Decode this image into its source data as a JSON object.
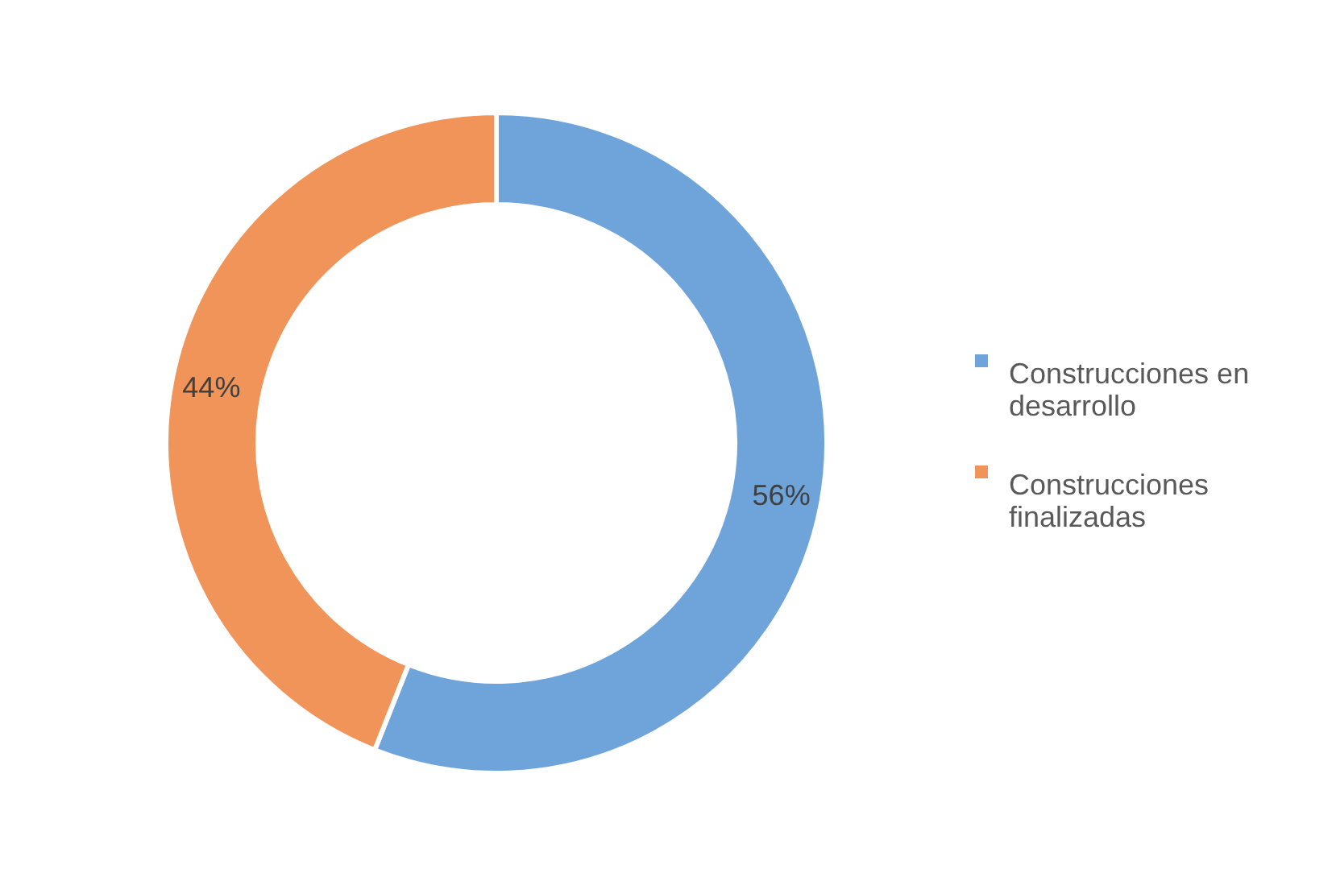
{
  "chart_data": {
    "type": "donut",
    "categories": [
      "Construcciones en desarrollo",
      "Construcciones finalizadas"
    ],
    "values": [
      56,
      44
    ],
    "value_labels": [
      "56%",
      "44%"
    ],
    "colors": [
      "#6fa4db",
      "#f0945a"
    ],
    "legend": "right"
  }
}
